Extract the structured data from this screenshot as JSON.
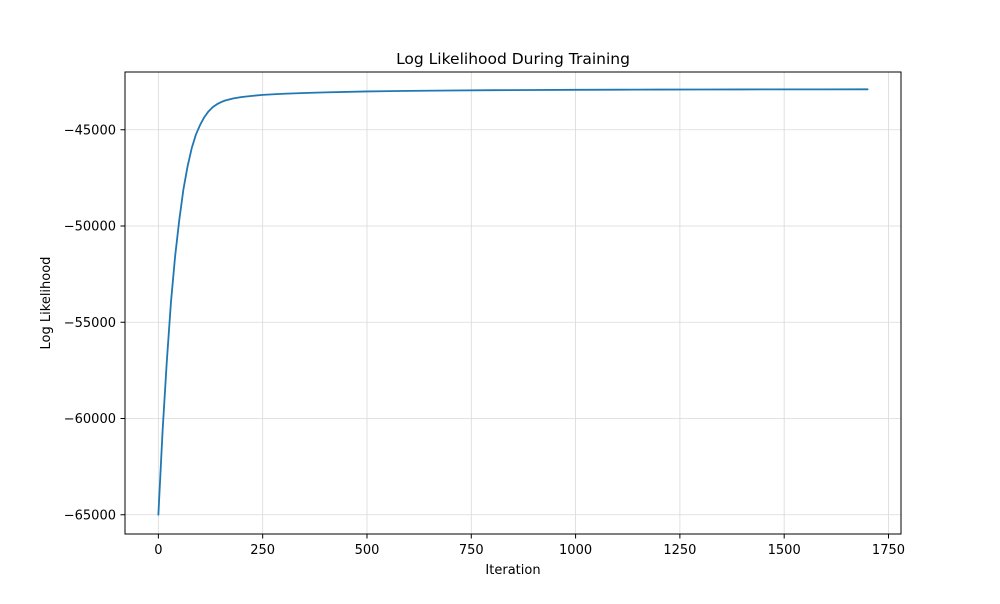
{
  "chart_data": {
    "type": "line",
    "title": "Log Likelihood During Training",
    "xlabel": "Iteration",
    "ylabel": "Log Likelihood",
    "xlim": [
      -80,
      1780
    ],
    "ylim": [
      -66000,
      -42000
    ],
    "xticks": [
      0,
      250,
      500,
      750,
      1000,
      1250,
      1500,
      1750
    ],
    "yticks": [
      -65000,
      -60000,
      -55000,
      -50000,
      -45000
    ],
    "xtick_labels": [
      "0",
      "250",
      "500",
      "750",
      "1000",
      "1250",
      "1500",
      "1750"
    ],
    "ytick_labels": [
      "−65000",
      "−60000",
      "−55000",
      "−50000",
      "−45000"
    ],
    "grid": true,
    "series": [
      {
        "color": "#1f77b4",
        "x": [
          0,
          10,
          20,
          30,
          40,
          50,
          60,
          70,
          80,
          90,
          100,
          110,
          120,
          130,
          140,
          150,
          160,
          180,
          200,
          225,
          250,
          300,
          350,
          400,
          500,
          600,
          700,
          800,
          900,
          1000,
          1100,
          1200,
          1300,
          1400,
          1500,
          1600,
          1700
        ],
        "y": [
          -65000,
          -60680,
          -57100,
          -54000,
          -51600,
          -49700,
          -48100,
          -46900,
          -45950,
          -45250,
          -44750,
          -44350,
          -44050,
          -43830,
          -43680,
          -43570,
          -43480,
          -43370,
          -43300,
          -43240,
          -43190,
          -43130,
          -43090,
          -43060,
          -43010,
          -42980,
          -42960,
          -42945,
          -42935,
          -42925,
          -42918,
          -42912,
          -42908,
          -42905,
          -42903,
          -42901,
          -42900
        ]
      }
    ]
  }
}
